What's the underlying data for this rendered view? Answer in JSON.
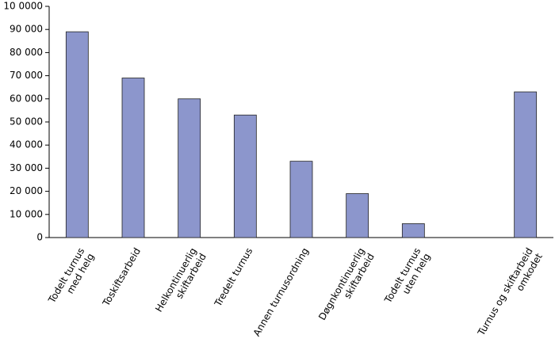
{
  "chart_data": {
    "type": "bar",
    "categories": [
      "Todelt turnus\nmed helg",
      "Toskiftsarbeid",
      "Helkontinuerlig\nskiftarbeid",
      "Tredelt turnus",
      "Annen turnusordning",
      "Døgnkontinuerlig\nskiftarbeid",
      "Todelt turnus\nuten helg",
      null,
      "Turnus og skiftarbeid\nomkodet"
    ],
    "values": [
      89000,
      69000,
      60000,
      53000,
      33000,
      19000,
      6000,
      null,
      63000
    ],
    "color": "#8c96cc",
    "ylim": [
      0,
      100000
    ],
    "yticks": [
      0,
      {
        "value": 10000,
        "label": "10 000"
      },
      {
        "value": 20000,
        "label": "20 000"
      },
      {
        "value": 30000,
        "label": "30 000"
      },
      {
        "value": 40000,
        "label": "40 000"
      },
      {
        "value": 50000,
        "label": "50 000"
      },
      {
        "value": 60000,
        "label": "60 000"
      },
      {
        "value": 70000,
        "label": "70 000"
      },
      {
        "value": 80000,
        "label": "80 000"
      },
      {
        "value": 90000,
        "label": "90 000"
      },
      {
        "value": 100000,
        "label": "10 0000"
      }
    ],
    "grid": false
  }
}
